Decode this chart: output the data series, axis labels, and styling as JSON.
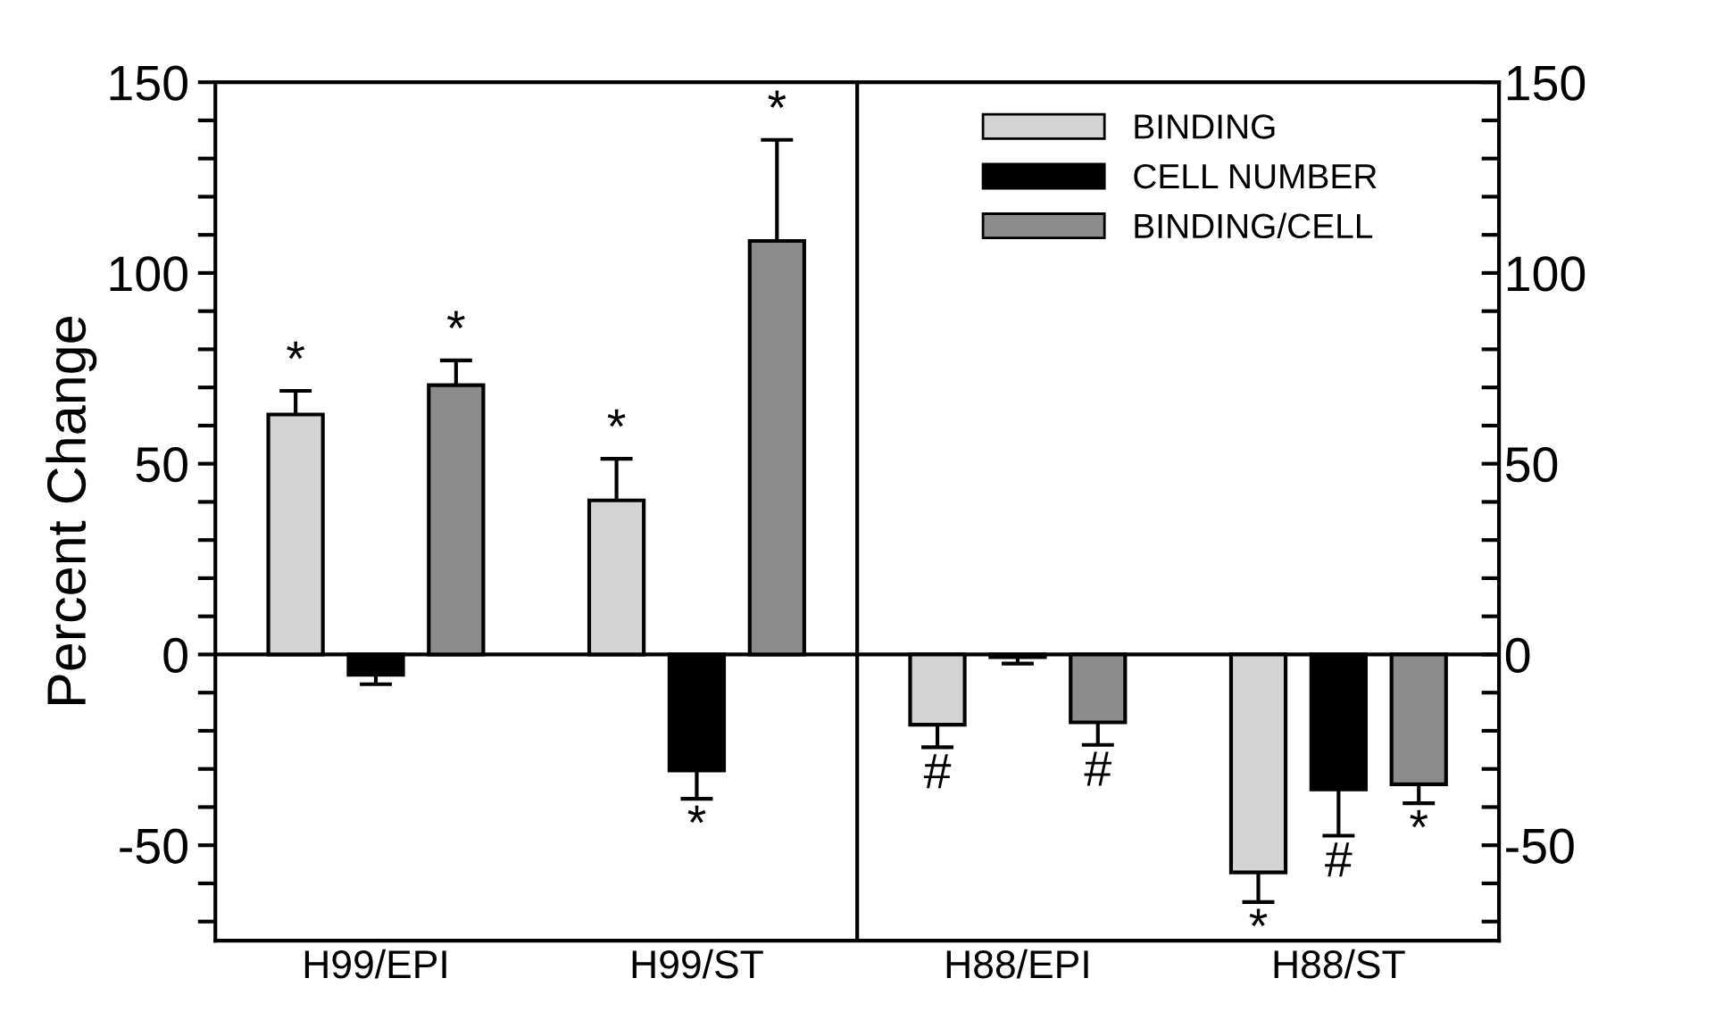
{
  "chart_data": {
    "type": "bar",
    "ylabel": "Percent Change",
    "categories": [
      "H99/EPI",
      "H99/ST",
      "H88/EPI",
      "H88/ST"
    ],
    "series": [
      {
        "name": "BINDING",
        "color": "#d4d4d4",
        "values": [
          62.9,
          40.4,
          -18.4,
          -57.1
        ],
        "errors": [
          [
            62.9,
            69.1
          ],
          [
            40.4,
            51.3
          ],
          [
            -24.3,
            -18.4
          ],
          [
            -64.9,
            -57.1
          ]
        ],
        "value_labels": [
          "*",
          "*",
          "#",
          "*"
        ]
      },
      {
        "name": "CELL NUMBER",
        "color": "#000000",
        "values": [
          -5.3,
          -30.4,
          -0.7,
          -35.4
        ],
        "errors": [
          [
            -7.8,
            -5.3
          ],
          [
            -37.8,
            -30.4
          ],
          [
            -2.4,
            -0.7
          ],
          [
            -47.5,
            -35.4
          ]
        ],
        "value_labels": [
          null,
          "*",
          null,
          "#"
        ]
      },
      {
        "name": "BINDING/CELL",
        "color": "#8c8c8c",
        "values": [
          70.6,
          108.4,
          -17.8,
          -34
        ],
        "errors": [
          [
            70.6,
            77.1
          ],
          [
            108.4,
            134.9
          ],
          [
            -23.7,
            -17.8
          ],
          [
            -39,
            -34
          ]
        ],
        "value_labels": [
          "*",
          "*",
          "#",
          "*"
        ]
      }
    ],
    "ylim": [
      -75,
      150
    ],
    "yticks": [
      -50,
      {
        "value": -70,
        "label": null
      },
      {
        "value": -60,
        "label": null
      },
      {
        "value": -40,
        "label": null
      },
      {
        "value": -30,
        "label": null
      },
      {
        "value": -20,
        "label": null
      },
      {
        "value": -10,
        "label": null
      },
      0,
      {
        "value": 10,
        "label": null
      },
      {
        "value": 20,
        "label": null
      },
      {
        "value": 30,
        "label": null
      },
      {
        "value": 40,
        "label": null
      },
      50,
      {
        "value": 60,
        "label": null
      },
      {
        "value": 70,
        "label": null
      },
      {
        "value": 80,
        "label": null
      },
      {
        "value": 90,
        "label": null
      },
      100,
      {
        "value": 110,
        "label": null
      },
      {
        "value": 120,
        "label": null
      },
      {
        "value": 130,
        "label": null
      },
      {
        "value": 140,
        "label": null
      },
      150
    ],
    "y2lim": [
      -75,
      150
    ],
    "y2ticks": [
      -50,
      {
        "value": -70,
        "label": null
      },
      {
        "value": -60,
        "label": null
      },
      {
        "value": -40,
        "label": null
      },
      {
        "value": -30,
        "label": null
      },
      {
        "value": -20,
        "label": null
      },
      {
        "value": -10,
        "label": null
      },
      0,
      {
        "value": 10,
        "label": null
      },
      {
        "value": 20,
        "label": null
      },
      {
        "value": 30,
        "label": null
      },
      {
        "value": 40,
        "label": null
      },
      50,
      {
        "value": 60,
        "label": null
      },
      {
        "value": 70,
        "label": null
      },
      {
        "value": 80,
        "label": null
      },
      {
        "value": 90,
        "label": null
      },
      100,
      {
        "value": 110,
        "label": null
      },
      {
        "value": 120,
        "label": null
      },
      {
        "value": 130,
        "label": null
      },
      {
        "value": 140,
        "label": null
      },
      150
    ],
    "ref_lines": [
      {
        "axis": "y",
        "value": 0,
        "color": "#000000"
      }
    ],
    "legend": "top right",
    "grid": false
  }
}
